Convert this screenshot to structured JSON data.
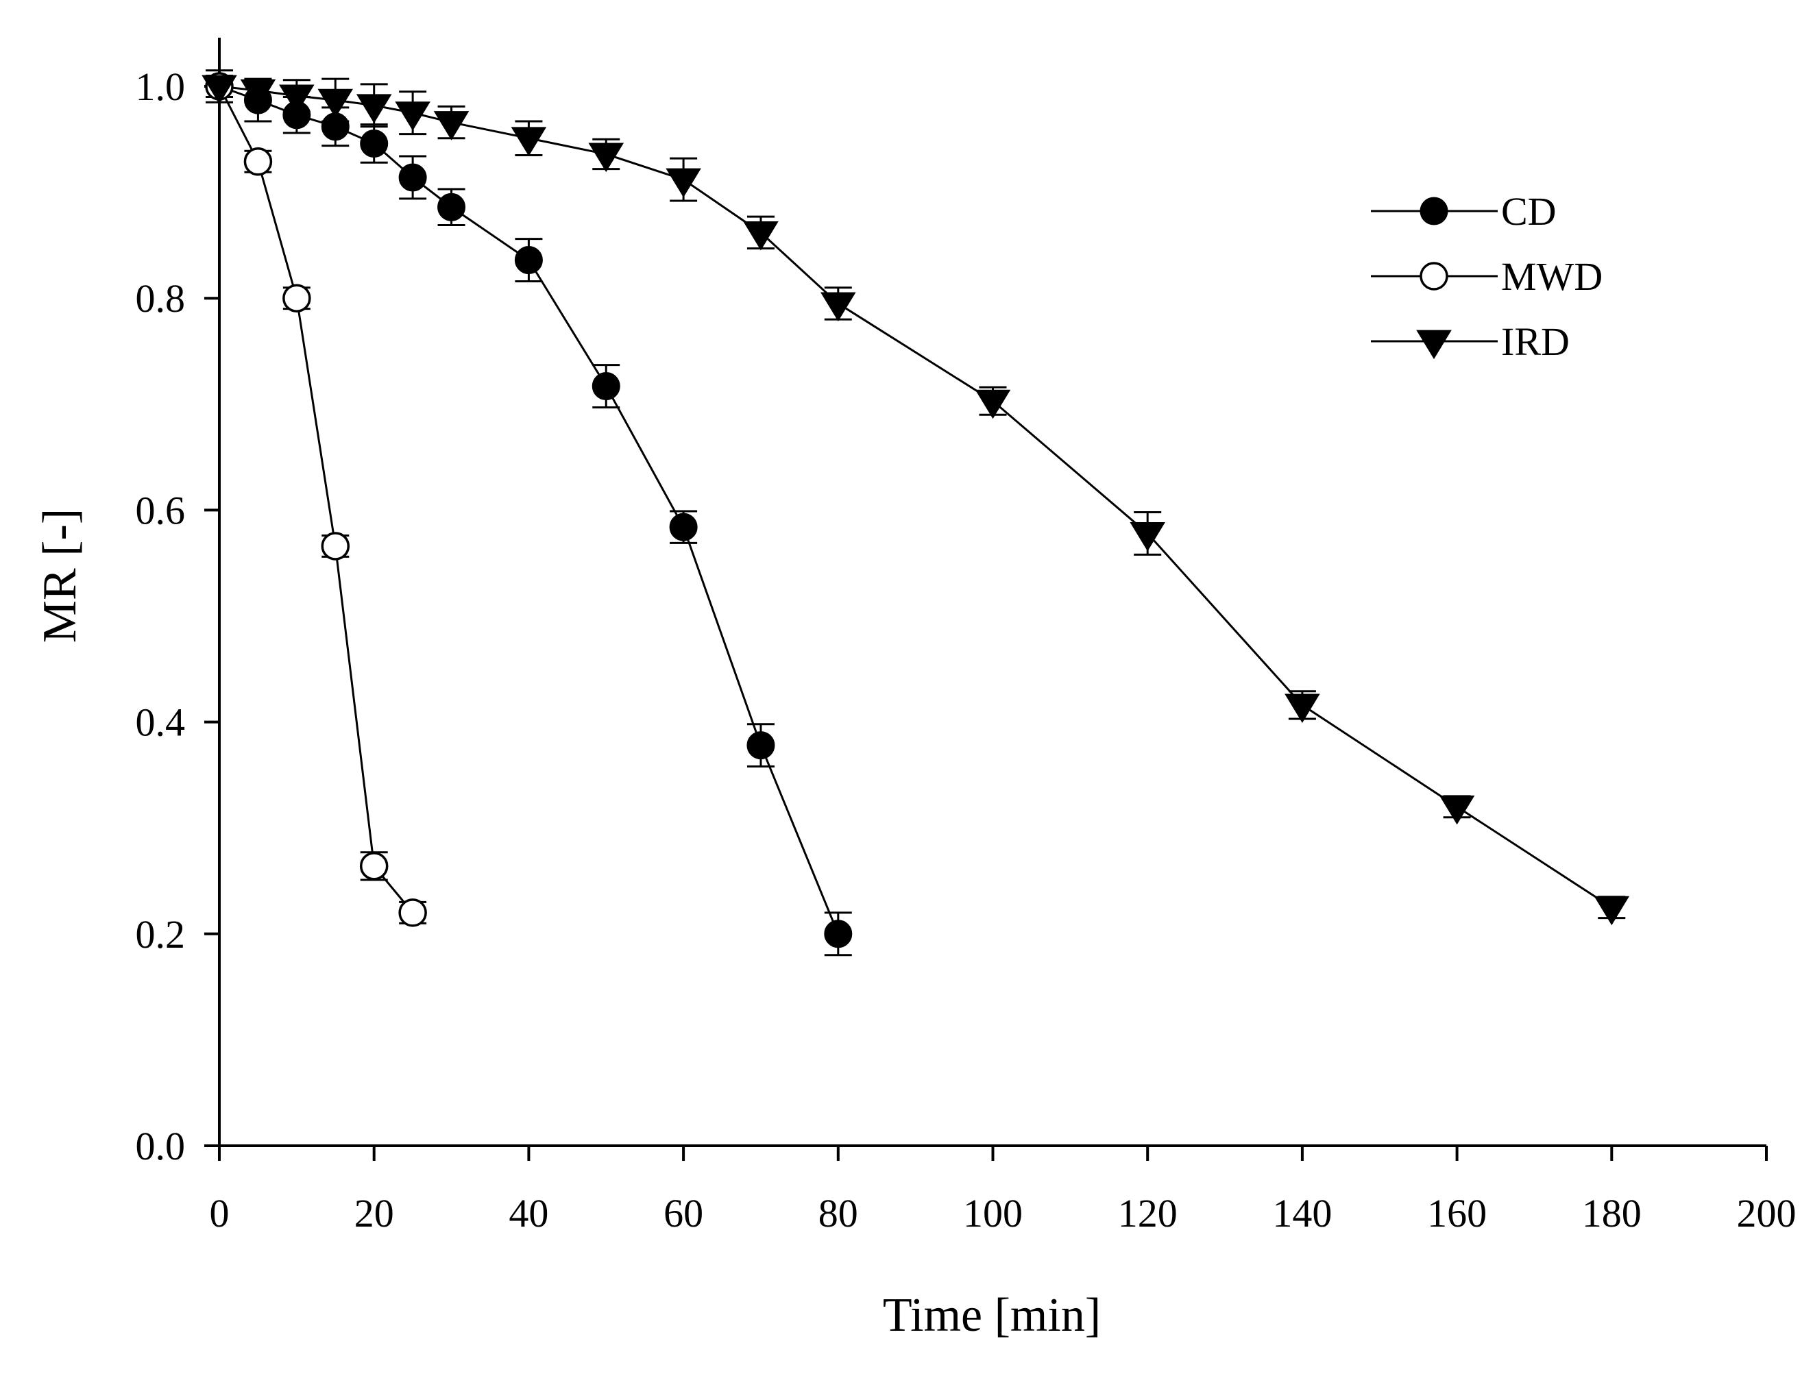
{
  "chart_data": {
    "type": "line",
    "title": "",
    "xlabel": "Time [min]",
    "ylabel": "MR [-]",
    "xlim": [
      0,
      200
    ],
    "ylim": [
      0.0,
      1.0
    ],
    "x_ticks": [
      0,
      20,
      40,
      60,
      80,
      100,
      120,
      140,
      160,
      180,
      200
    ],
    "x_tick_labels": [
      "0",
      "20",
      "40",
      "60",
      "80",
      "100",
      "120",
      "140",
      "160",
      "180",
      "200"
    ],
    "y_ticks": [
      0.0,
      0.2,
      0.4,
      0.6,
      0.8,
      1.0
    ],
    "y_tick_labels": [
      "0.0",
      "0.2",
      "0.4",
      "0.6",
      "0.8",
      "1.0"
    ],
    "grid": false,
    "legend_position": "top-right",
    "series": [
      {
        "name": "CD",
        "marker": "filled-circle",
        "x": [
          0,
          5,
          10,
          15,
          20,
          25,
          30,
          40,
          50,
          60,
          70,
          80
        ],
        "y": [
          1.0,
          0.987,
          0.973,
          0.962,
          0.946,
          0.914,
          0.886,
          0.836,
          0.717,
          0.584,
          0.378,
          0.2
        ],
        "err": [
          0.015,
          0.02,
          0.017,
          0.018,
          0.018,
          0.02,
          0.017,
          0.02,
          0.02,
          0.015,
          0.02,
          0.02
        ]
      },
      {
        "name": "MWD",
        "marker": "open-circle",
        "x": [
          0,
          5,
          10,
          15,
          20,
          25
        ],
        "y": [
          1.0,
          0.929,
          0.8,
          0.566,
          0.264,
          0.22
        ],
        "err": [
          0.01,
          0.01,
          0.01,
          0.01,
          0.013,
          0.01
        ]
      },
      {
        "name": "IRD",
        "marker": "filled-triangle-down",
        "x": [
          0,
          5,
          10,
          15,
          20,
          25,
          30,
          40,
          50,
          60,
          70,
          80,
          100,
          120,
          140,
          160,
          180
        ],
        "y": [
          1.0,
          0.996,
          0.991,
          0.987,
          0.982,
          0.975,
          0.966,
          0.951,
          0.936,
          0.912,
          0.862,
          0.795,
          0.703,
          0.578,
          0.416,
          0.32,
          0.225
        ],
        "err": [
          0.01,
          0.01,
          0.015,
          0.02,
          0.02,
          0.02,
          0.015,
          0.016,
          0.014,
          0.02,
          0.015,
          0.015,
          0.013,
          0.02,
          0.013,
          0.01,
          0.01
        ]
      }
    ]
  }
}
